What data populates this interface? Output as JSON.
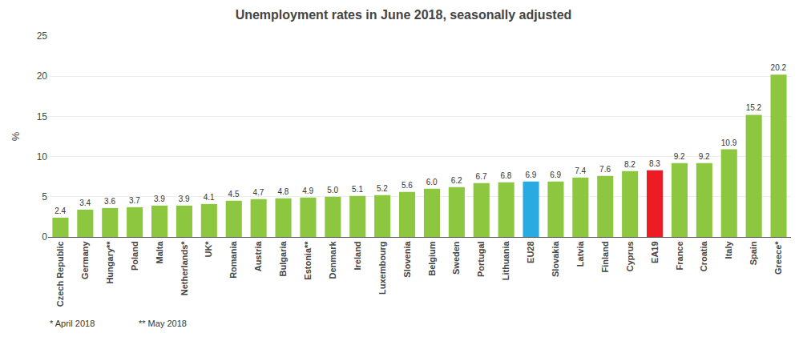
{
  "chart_data": {
    "type": "bar",
    "title": "Unemployment rates in June 2018, seasonally adjusted",
    "y_label": "%",
    "categories": [
      "Czech Republic",
      "Germany",
      "Hungary**",
      "Poland",
      "Malta",
      "Netherlands*",
      "UK*",
      "Romania",
      "Austria",
      "Bulgaria",
      "Estonia**",
      "Denmark",
      "Ireland",
      "Luxembourg",
      "Slovenia",
      "Belgium",
      "Sweden",
      "Portugal",
      "Lithuania",
      "EU28",
      "Slovakia",
      "Latvia",
      "Finland",
      "Cyprus",
      "EA19",
      "France",
      "Croatia",
      "Italy",
      "Spain",
      "Greece*"
    ],
    "values": [
      2.4,
      3.4,
      3.6,
      3.7,
      3.9,
      3.9,
      4.1,
      4.5,
      4.7,
      4.8,
      4.9,
      5.0,
      5.1,
      5.2,
      5.6,
      6.0,
      6.2,
      6.7,
      6.8,
      6.9,
      6.9,
      7.4,
      7.6,
      8.2,
      8.3,
      9.2,
      9.2,
      10.9,
      15.2,
      20.2
    ],
    "value_labels": [
      "2.4",
      "3.4",
      "3.6",
      "3.7",
      "3.9",
      "3.9",
      "4.1",
      "4.5",
      "4.7",
      "4.8",
      "4.9",
      "5.0",
      "5.1",
      "5.2",
      "5.6",
      "6.0",
      "6.2",
      "6.7",
      "6.8",
      "6.9",
      "6.9",
      "7.4",
      "7.6",
      "8.2",
      "8.3",
      "9.2",
      "9.2",
      "10.9",
      "15.2",
      "20.2"
    ],
    "colors": [
      "#8dc63f",
      "#8dc63f",
      "#8dc63f",
      "#8dc63f",
      "#8dc63f",
      "#8dc63f",
      "#8dc63f",
      "#8dc63f",
      "#8dc63f",
      "#8dc63f",
      "#8dc63f",
      "#8dc63f",
      "#8dc63f",
      "#8dc63f",
      "#8dc63f",
      "#8dc63f",
      "#8dc63f",
      "#8dc63f",
      "#8dc63f",
      "#29abe2",
      "#8dc63f",
      "#8dc63f",
      "#8dc63f",
      "#8dc63f",
      "#ed1c24",
      "#8dc63f",
      "#8dc63f",
      "#8dc63f",
      "#8dc63f",
      "#8dc63f"
    ],
    "ylim": [
      0,
      25
    ],
    "yticks": [
      0,
      5,
      10,
      15,
      20,
      25
    ],
    "grid": true,
    "data_labels": true,
    "annotations": [
      "* April 2018",
      "** May 2018"
    ]
  }
}
